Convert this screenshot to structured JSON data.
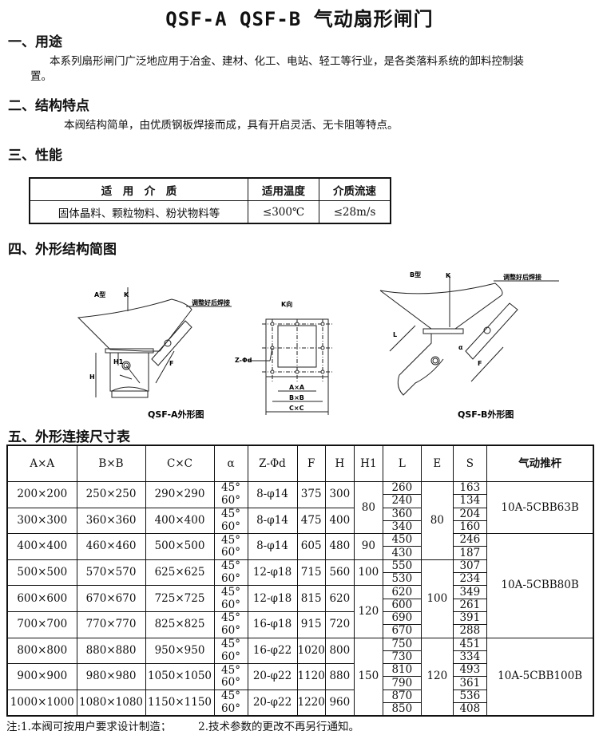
{
  "title": "QSF-A QSF-B 气动扇形闸门",
  "sections": {
    "s1": {
      "heading": "一、用途",
      "text": "本系列扇形闸门广泛地应用于冶金、建材、化工、电站、轻工等行业，是各类落料系统的卸料控制装",
      "text2": "置。"
    },
    "s2": {
      "heading": "二、结构特点",
      "text": "本阀结构简单，由优质钢板焊接而成，具有开启灵活、无卡阻等特点。"
    },
    "s3": {
      "heading": "三、性能",
      "table": {
        "headers": [
          "适　用　介　质",
          "适用温度",
          "介质流速"
        ],
        "row": [
          "固体晶料、颗粒物料、粉状物料等",
          "≤300℃",
          "≤28m/s"
        ]
      }
    },
    "s4": {
      "heading": "四、外形结构简图",
      "figA": {
        "type": "A型",
        "k": "K",
        "weld": "调整好后焊接",
        "H": "H",
        "H1": "H1",
        "F": "F",
        "caption": "QSF-A外形图"
      },
      "figK": {
        "title": "K向",
        "zd": "Z-Φd",
        "ax": "A×A",
        "bx": "B×B",
        "cx": "C×C"
      },
      "figB": {
        "type": "B型",
        "k": "K",
        "weld": "调整好后焊接",
        "L": "L",
        "a": "α",
        "F": "F",
        "caption": "QSF-B外形图"
      }
    },
    "s5": {
      "heading": "五、外形连接尺寸表"
    }
  },
  "dim_table": {
    "headers": [
      "A×A",
      "B×B",
      "C×C",
      "α",
      "Z-Φd",
      "F",
      "H",
      "H1",
      "L",
      "E",
      "S",
      "气动推杆"
    ],
    "rows": [
      {
        "a": "200×200",
        "b": "250×250",
        "c": "290×290",
        "z": "8-φ14",
        "f": "375",
        "h": "300",
        "alpha": [
          "45°",
          "60°"
        ],
        "l": [
          "260",
          "240"
        ],
        "s": [
          "163",
          "134"
        ]
      },
      {
        "a": "300×300",
        "b": "360×360",
        "c": "400×400",
        "z": "8-φ14",
        "f": "475",
        "h": "400",
        "alpha": [
          "45°",
          "60°"
        ],
        "l": [
          "360",
          "340"
        ],
        "s": [
          "204",
          "160"
        ]
      },
      {
        "a": "400×400",
        "b": "460×460",
        "c": "500×500",
        "z": "8-φ14",
        "f": "605",
        "h": "480",
        "alpha": [
          "45°",
          "60°"
        ],
        "l": [
          "450",
          "430"
        ],
        "s": [
          "246",
          "187"
        ]
      },
      {
        "a": "500×500",
        "b": "570×570",
        "c": "625×625",
        "z": "12-φ18",
        "f": "715",
        "h": "560",
        "alpha": [
          "45°",
          "60°"
        ],
        "l": [
          "550",
          "530"
        ],
        "s": [
          "307",
          "234"
        ]
      },
      {
        "a": "600×600",
        "b": "670×670",
        "c": "725×725",
        "z": "12-φ18",
        "f": "815",
        "h": "620",
        "alpha": [
          "45°",
          "60°"
        ],
        "l": [
          "620",
          "600"
        ],
        "s": [
          "349",
          "261"
        ]
      },
      {
        "a": "700×700",
        "b": "770×770",
        "c": "825×825",
        "z": "16-φ18",
        "f": "915",
        "h": "720",
        "alpha": [
          "45°",
          "60°"
        ],
        "l": [
          "690",
          "670"
        ],
        "s": [
          "391",
          "288"
        ]
      },
      {
        "a": "800×800",
        "b": "880×880",
        "c": "950×950",
        "z": "16-φ22",
        "f": "1020",
        "h": "800",
        "alpha": [
          "45°",
          "60°"
        ],
        "l": [
          "750",
          "730"
        ],
        "s": [
          "451",
          "334"
        ]
      },
      {
        "a": "900×900",
        "b": "980×980",
        "c": "1050×1050",
        "z": "20-φ22",
        "f": "1120",
        "h": "880",
        "alpha": [
          "45°",
          "60°"
        ],
        "l": [
          "810",
          "790"
        ],
        "s": [
          "493",
          "361"
        ]
      },
      {
        "a": "1000×1000",
        "b": "1080×1080",
        "c": "1150×1150",
        "z": "20-φ22",
        "f": "1220",
        "h": "960",
        "alpha": [
          "45°",
          "60°"
        ],
        "l": [
          "870",
          "850"
        ],
        "s": [
          "536",
          "408"
        ]
      }
    ],
    "h1_groups": [
      {
        "value": "80",
        "rows": 2
      },
      {
        "value": "90",
        "rows": 1
      },
      {
        "value": "100",
        "rows": 1
      },
      {
        "value": "120",
        "rows": 2
      },
      {
        "value": "150",
        "rows": 3
      }
    ],
    "e_groups": [
      {
        "value": "80",
        "rows": 3
      },
      {
        "value": "100",
        "rows": 3
      },
      {
        "value": "120",
        "rows": 3
      }
    ],
    "pusher_groups": [
      {
        "value": "10A-5CBB63B",
        "rows": 2
      },
      {
        "value": "10A-5CBB80B",
        "rows": 4
      },
      {
        "value": "10A-5CBB100B",
        "rows": 3
      }
    ]
  },
  "note": "注:1.本阀可按用户要求设计制造；　　　2.技术参数的更改不再另行通知。"
}
